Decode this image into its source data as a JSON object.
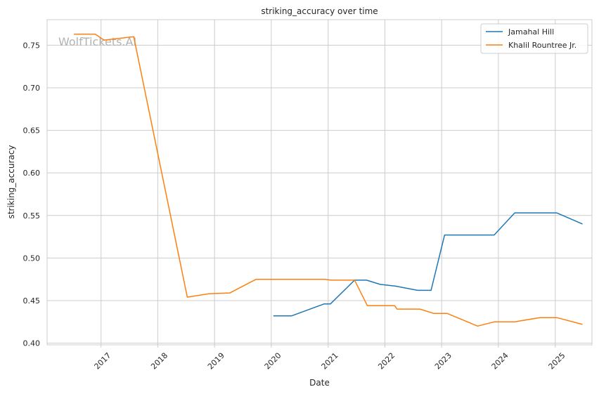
{
  "chart_data": {
    "type": "line",
    "title": "striking_accuracy over time",
    "xlabel": "Date",
    "ylabel": "striking_accuracy",
    "watermark": "WolfTickets.AI",
    "xlim": [
      "2016-01-20",
      "2025-08-25"
    ],
    "ylim": [
      0.398,
      0.78
    ],
    "x_ticks": [
      {
        "date": "2017-01-01",
        "label": "2017"
      },
      {
        "date": "2018-01-01",
        "label": "2018"
      },
      {
        "date": "2019-01-01",
        "label": "2019"
      },
      {
        "date": "2020-01-01",
        "label": "2020"
      },
      {
        "date": "2021-01-01",
        "label": "2021"
      },
      {
        "date": "2022-01-01",
        "label": "2022"
      },
      {
        "date": "2023-01-01",
        "label": "2023"
      },
      {
        "date": "2024-01-01",
        "label": "2024"
      },
      {
        "date": "2025-01-01",
        "label": "2025"
      }
    ],
    "y_ticks": [
      {
        "value": 0.4,
        "label": "0.40"
      },
      {
        "value": 0.45,
        "label": "0.45"
      },
      {
        "value": 0.5,
        "label": "0.50"
      },
      {
        "value": 0.55,
        "label": "0.55"
      },
      {
        "value": 0.6,
        "label": "0.60"
      },
      {
        "value": 0.65,
        "label": "0.65"
      },
      {
        "value": 0.7,
        "label": "0.70"
      },
      {
        "value": 0.75,
        "label": "0.75"
      }
    ],
    "grid": true,
    "legend_position": "top-right",
    "series": [
      {
        "name": "Jamahal Hill",
        "color": "#1f77b4",
        "points": [
          {
            "x": "2020-01-15",
            "y": 0.432
          },
          {
            "x": "2020-05-10",
            "y": 0.432
          },
          {
            "x": "2020-12-05",
            "y": 0.446
          },
          {
            "x": "2021-01-15",
            "y": 0.446
          },
          {
            "x": "2021-06-20",
            "y": 0.474
          },
          {
            "x": "2021-09-05",
            "y": 0.474
          },
          {
            "x": "2021-12-01",
            "y": 0.469
          },
          {
            "x": "2022-03-10",
            "y": 0.467
          },
          {
            "x": "2022-07-30",
            "y": 0.462
          },
          {
            "x": "2022-10-25",
            "y": 0.462
          },
          {
            "x": "2023-01-20",
            "y": 0.527
          },
          {
            "x": "2023-12-05",
            "y": 0.527
          },
          {
            "x": "2024-04-15",
            "y": 0.553
          },
          {
            "x": "2025-01-10",
            "y": 0.553
          },
          {
            "x": "2025-06-25",
            "y": 0.54
          }
        ]
      },
      {
        "name": "Khalil Rountree Jr.",
        "color": "#ff7f0e",
        "points": [
          {
            "x": "2016-07-10",
            "y": 0.763
          },
          {
            "x": "2016-11-25",
            "y": 0.763
          },
          {
            "x": "2017-01-20",
            "y": 0.756
          },
          {
            "x": "2017-07-30",
            "y": 0.76
          },
          {
            "x": "2018-07-10",
            "y": 0.454
          },
          {
            "x": "2018-11-25",
            "y": 0.458
          },
          {
            "x": "2019-04-10",
            "y": 0.459
          },
          {
            "x": "2019-09-25",
            "y": 0.475
          },
          {
            "x": "2020-12-10",
            "y": 0.475
          },
          {
            "x": "2021-01-20",
            "y": 0.474
          },
          {
            "x": "2021-06-20",
            "y": 0.474
          },
          {
            "x": "2021-09-10",
            "y": 0.444
          },
          {
            "x": "2022-03-05",
            "y": 0.444
          },
          {
            "x": "2022-03-20",
            "y": 0.44
          },
          {
            "x": "2022-08-15",
            "y": 0.44
          },
          {
            "x": "2022-11-10",
            "y": 0.435
          },
          {
            "x": "2023-02-05",
            "y": 0.435
          },
          {
            "x": "2023-08-20",
            "y": 0.42
          },
          {
            "x": "2023-12-05",
            "y": 0.425
          },
          {
            "x": "2024-04-15",
            "y": 0.425
          },
          {
            "x": "2024-09-25",
            "y": 0.43
          },
          {
            "x": "2025-01-10",
            "y": 0.43
          },
          {
            "x": "2025-06-25",
            "y": 0.422
          }
        ]
      }
    ]
  }
}
